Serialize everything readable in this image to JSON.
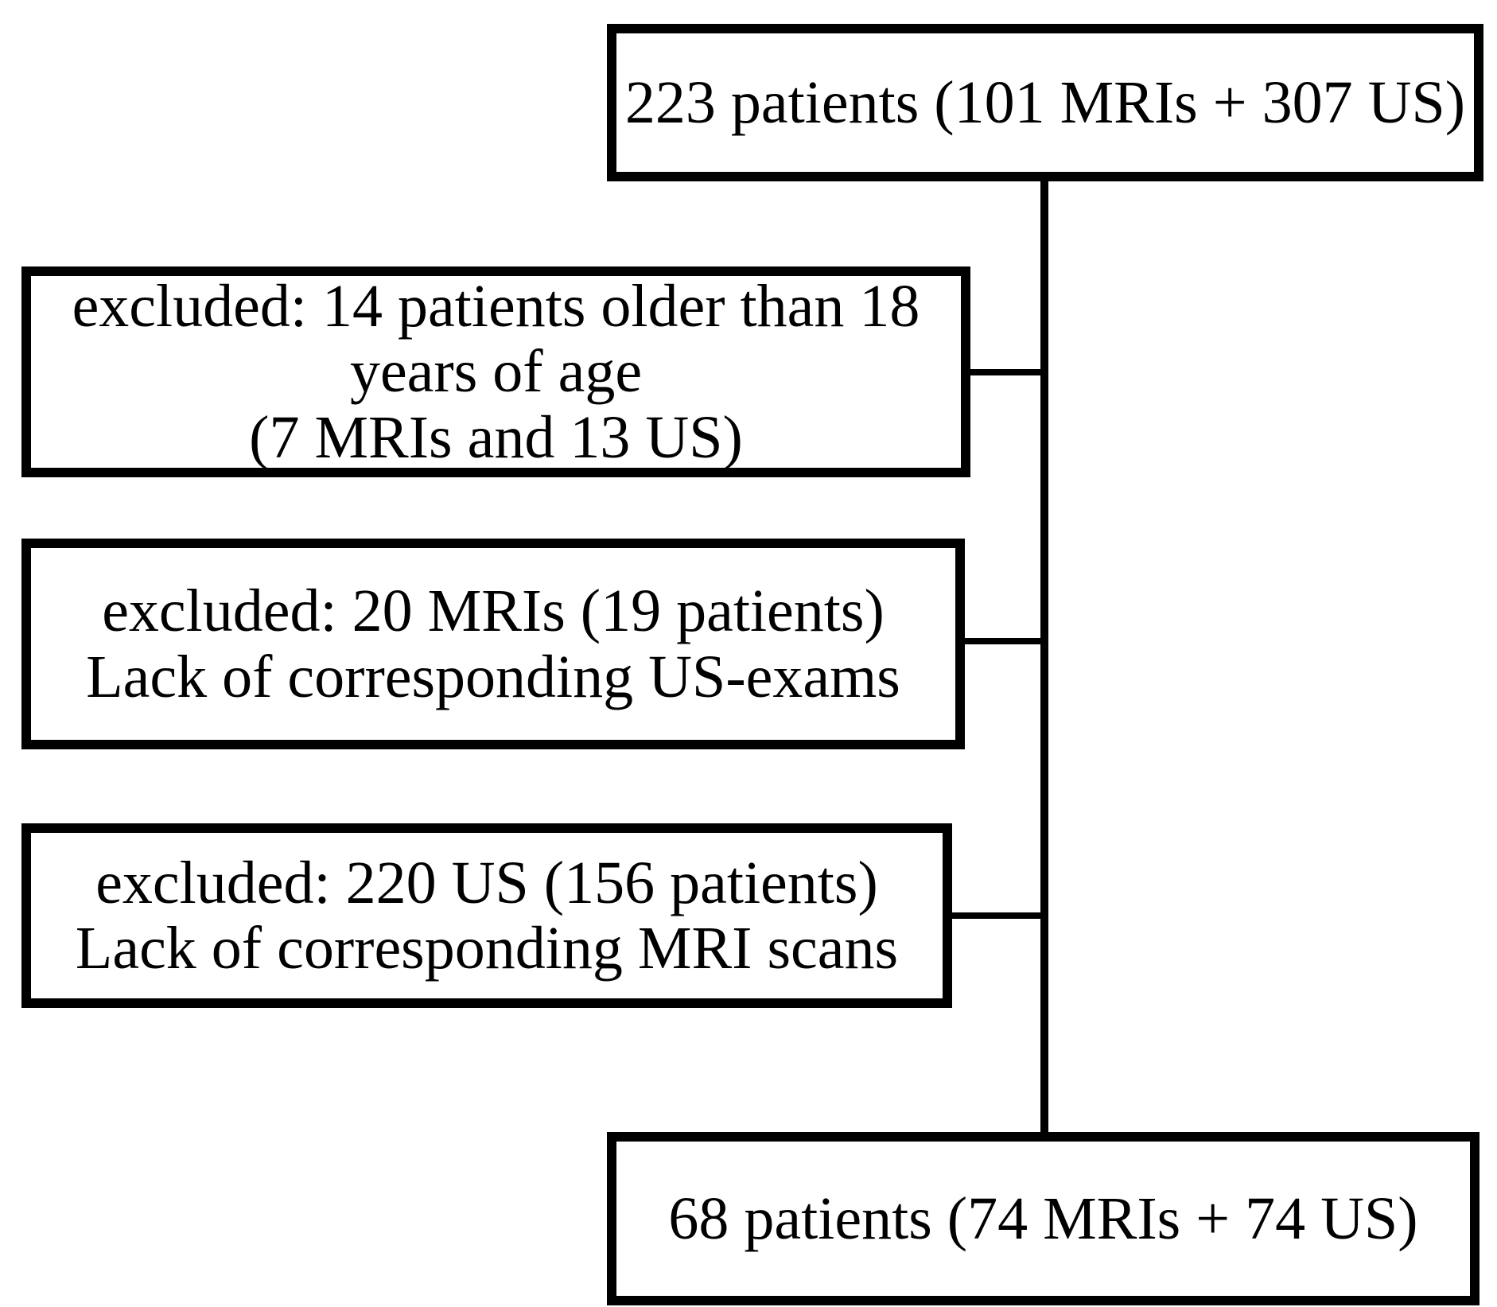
{
  "colors": {
    "background": "#ffffff",
    "border": "#000000",
    "text": "#000000"
  },
  "nodes": {
    "total": {
      "text": "223 patients (101 MRIs + 307 US)"
    },
    "excluded_age": {
      "lines": [
        "excluded: 14 patients older than 18",
        "years of age",
        "(7 MRIs and 13 US)"
      ]
    },
    "excluded_mris": {
      "lines": [
        "excluded: 20 MRIs (19 patients)",
        "Lack of corresponding US-exams"
      ]
    },
    "excluded_us": {
      "lines": [
        "excluded: 220 US (156 patients)",
        "Lack of corresponding MRI scans"
      ]
    },
    "final": {
      "text": "68 patients (74 MRIs + 74 US)"
    }
  },
  "edges": [
    {
      "from": "total",
      "to": "final"
    },
    {
      "from": "excluded_age",
      "to": "main-flow-line"
    },
    {
      "from": "excluded_mris",
      "to": "main-flow-line"
    },
    {
      "from": "excluded_us",
      "to": "main-flow-line"
    }
  ]
}
